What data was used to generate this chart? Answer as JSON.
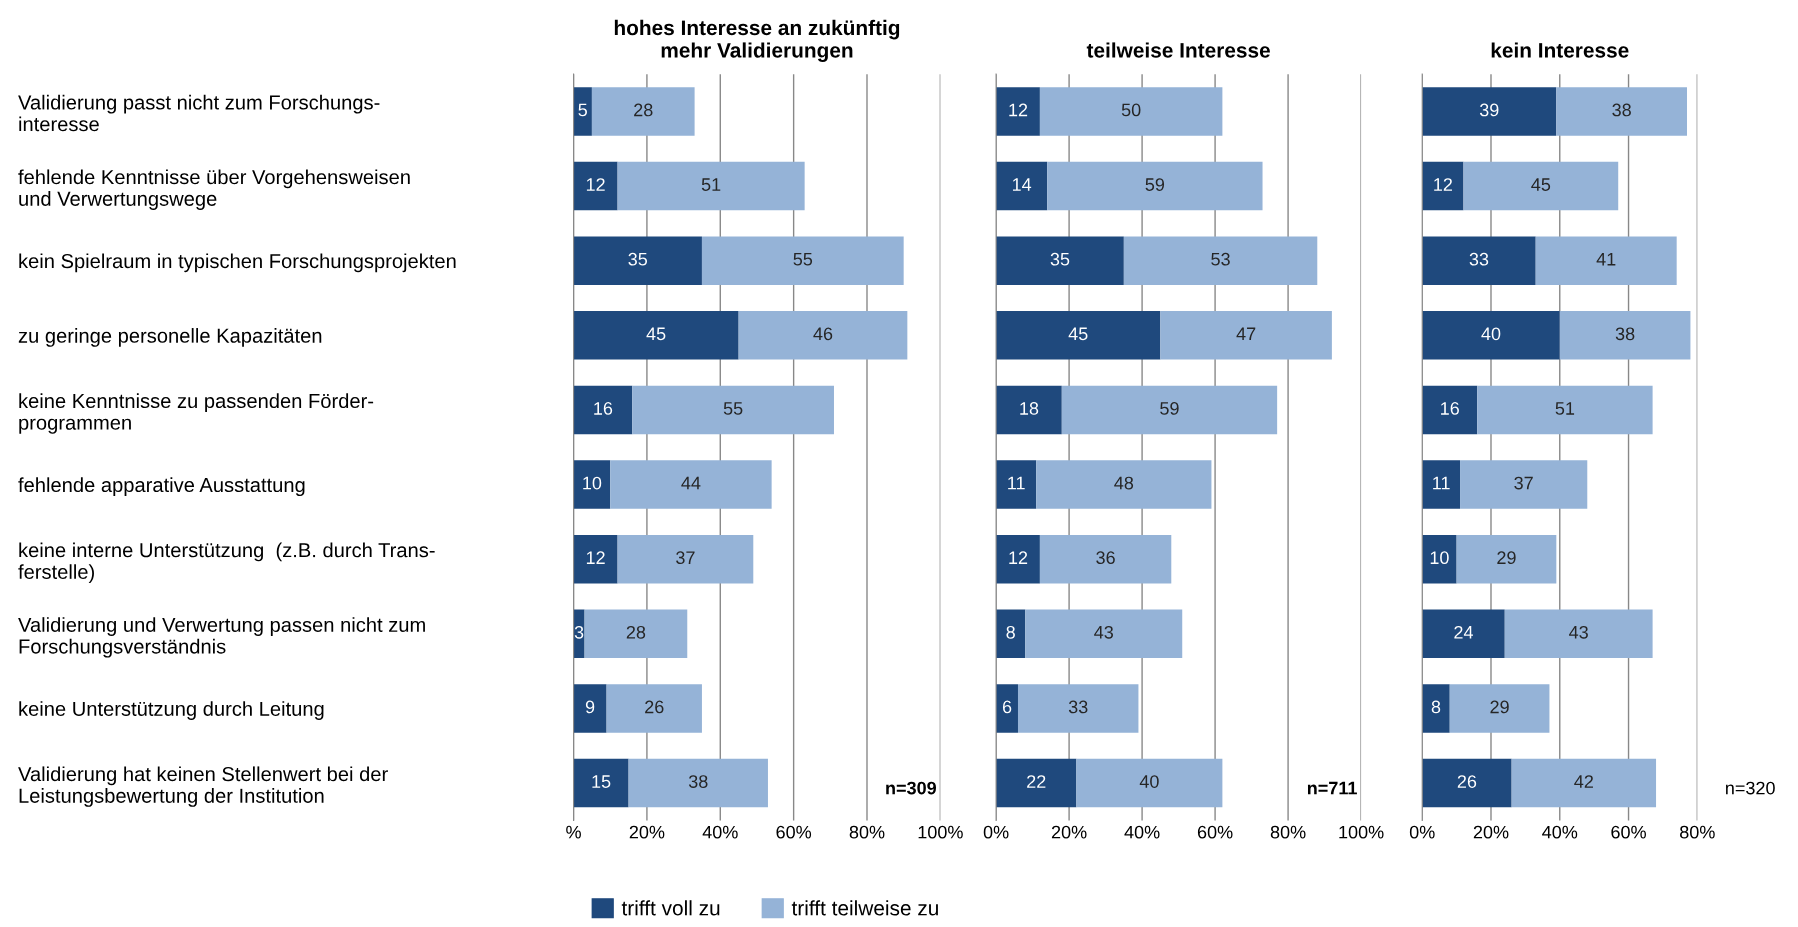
{
  "chart_data": [
    {
      "type": "bar",
      "orientation": "horizontal",
      "stacked": true,
      "title": "hohes Interesse an zukünftig\nmehr Validierungen",
      "categories": [
        "Validierung passt nicht zum Forschungs-\ninteresse",
        "fehlende Kenntnisse über Vorgehensweisen\nund Verwertungswege",
        "kein Spielraum in typischen Forschungsprojekten",
        "zu geringe personelle Kapazitäten",
        "keine Kenntnisse zu passenden Förder-\nprogrammen",
        "fehlende apparative Ausstattung",
        "keine interne Unterstützung  (z.B. durch Trans-\nferstelle)",
        "Validierung und Verwertung passen nicht zum\nForschungsverständnis",
        "keine Unterstützung durch Leitung",
        "Validierung hat keinen Stellenwert bei der\nLeistungsbewertung der Institution"
      ],
      "series": [
        {
          "name": "trifft voll zu",
          "color": "#1f497d",
          "values": [
            5,
            12,
            35,
            45,
            16,
            10,
            12,
            3,
            9,
            15
          ]
        },
        {
          "name": "trifft teilweise zu",
          "color": "#95b3d7",
          "values": [
            28,
            51,
            55,
            46,
            55,
            44,
            37,
            28,
            26,
            38
          ]
        }
      ],
      "xlim": [
        0,
        100
      ],
      "xticks": [
        {
          "value": 0,
          "label": "%"
        },
        {
          "value": 20,
          "label": "20%"
        },
        {
          "value": 40,
          "label": "40%"
        },
        {
          "value": 60,
          "label": "60%"
        },
        {
          "value": 80,
          "label": "80%"
        },
        {
          "value": 100,
          "label": "100%"
        }
      ],
      "grid": "x",
      "data_labels": true,
      "legend": "bottom",
      "annotations": [
        "n=309"
      ]
    },
    {
      "type": "bar",
      "orientation": "horizontal",
      "stacked": true,
      "title": "teilweise Interesse",
      "categories": [
        null,
        null,
        null,
        null,
        null,
        null,
        null,
        null,
        null,
        null
      ],
      "series": [
        {
          "color": "#1f497d",
          "values": [
            12,
            14,
            35,
            45,
            18,
            11,
            12,
            8,
            6,
            22
          ]
        },
        {
          "color": "#95b3d7",
          "values": [
            50,
            59,
            53,
            47,
            59,
            48,
            36,
            43,
            33,
            40
          ]
        }
      ],
      "xlim": [
        0,
        100
      ],
      "xticks": [
        {
          "value": 0,
          "label": "0%"
        },
        {
          "value": 20,
          "label": "20%"
        },
        {
          "value": 40,
          "label": "40%"
        },
        {
          "value": 60,
          "label": "60%"
        },
        {
          "value": 80,
          "label": "80%"
        },
        {
          "value": 100,
          "label": "100%"
        }
      ],
      "grid": "x",
      "data_labels": true,
      "tick_labels": "x",
      "annotations": [
        "n=711"
      ]
    },
    {
      "type": "bar",
      "orientation": "horizontal",
      "stacked": true,
      "title": "kein Interesse",
      "categories": [
        null,
        null,
        null,
        null,
        null,
        null,
        null,
        null,
        null,
        null
      ],
      "series": [
        {
          "color": "#1f497d",
          "values": [
            39,
            12,
            33,
            40,
            16,
            11,
            10,
            24,
            8,
            26
          ]
        },
        {
          "color": "#95b3d7",
          "values": [
            38,
            45,
            41,
            38,
            51,
            37,
            29,
            43,
            29,
            42
          ]
        }
      ],
      "xlim": [
        0,
        80
      ],
      "xticks": [
        {
          "value": 0,
          "label": "0%"
        },
        {
          "value": 20,
          "label": "20%"
        },
        {
          "value": 40,
          "label": "40%"
        },
        {
          "value": 60,
          "label": "60%"
        },
        {
          "value": 80,
          "label": "80%"
        }
      ],
      "grid": "x",
      "data_labels": true,
      "tick_labels": "x",
      "annotations": [
        "n=320"
      ]
    }
  ]
}
